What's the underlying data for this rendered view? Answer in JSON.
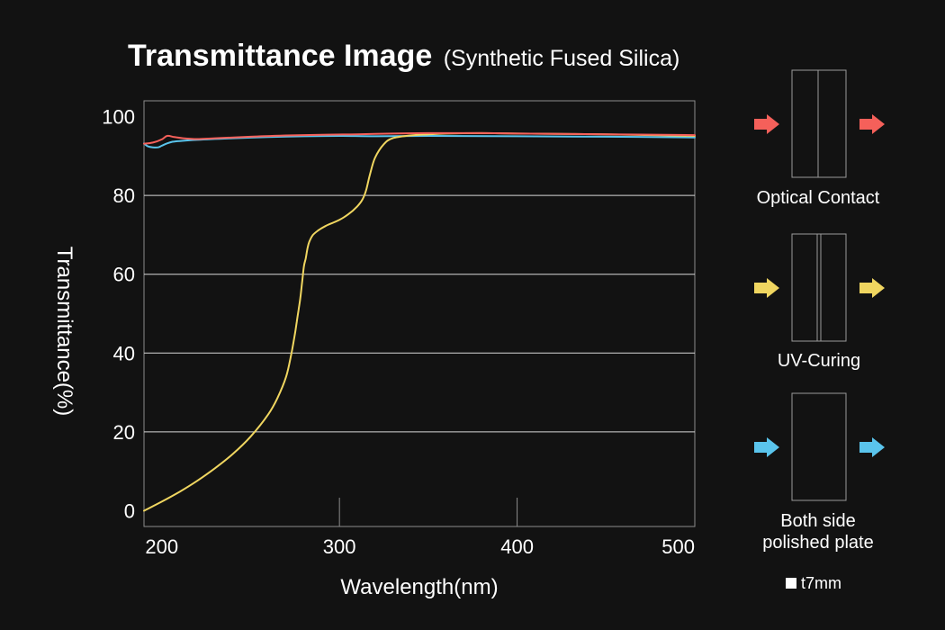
{
  "chart_data": {
    "type": "line",
    "title": "Transmittance Image",
    "subtitle": "(Synthetic Fused Silica)",
    "xlabel": "Wavelength(nm)",
    "ylabel": "Transmittance(%)",
    "xlim": [
      190,
      500
    ],
    "ylim": [
      -4,
      104
    ],
    "x_ticks": [
      {
        "value": 200,
        "label": "200"
      },
      {
        "value": 300,
        "label": "300"
      },
      {
        "value": 400,
        "label": "400"
      },
      {
        "value": 500,
        "label": "500"
      }
    ],
    "y_ticks": [
      {
        "value": 0,
        "label": "0"
      },
      {
        "value": 20,
        "label": "20"
      },
      {
        "value": 40,
        "label": "40"
      },
      {
        "value": 60,
        "label": "60"
      },
      {
        "value": 80,
        "label": "80"
      },
      {
        "value": 100,
        "label": "100"
      }
    ],
    "grid": {
      "horizontal": [
        20,
        40,
        60,
        80
      ],
      "vertical_stubs": [
        300,
        400
      ]
    },
    "series": [
      {
        "name": "Optical Contact",
        "color": "#f5605a",
        "x": [
          190,
          195,
          200,
          203,
          207,
          212,
          220,
          230,
          250,
          270,
          290,
          310,
          330,
          350,
          380,
          400,
          450,
          500
        ],
        "y": [
          93.1,
          93.4,
          94.2,
          95.1,
          94.8,
          94.5,
          94.3,
          94.5,
          94.9,
          95.2,
          95.4,
          95.5,
          95.7,
          95.8,
          95.8,
          95.7,
          95.5,
          95.3
        ]
      },
      {
        "name": "UV-Curing",
        "color": "#f0d660",
        "x": [
          190,
          200,
          210,
          220,
          230,
          240,
          250,
          260,
          265,
          270,
          273,
          275,
          276,
          277,
          278,
          279,
          280,
          281,
          282,
          283,
          285,
          288,
          292,
          296,
          300,
          305,
          310,
          313,
          315,
          317,
          320,
          325,
          330,
          340,
          350,
          360,
          380,
          400,
          450,
          500
        ],
        "y": [
          0,
          2.3,
          4.8,
          7.6,
          10.8,
          14.4,
          18.8,
          24.5,
          28.5,
          34,
          40,
          45,
          48,
          51,
          54,
          58,
          62,
          64,
          66.5,
          68.2,
          69.9,
          71.1,
          72.2,
          73,
          73.8,
          75.2,
          77.2,
          79,
          81.3,
          85,
          89.5,
          93,
          94.5,
          95.2,
          95.5,
          95.7,
          95.8,
          95.7,
          95.5,
          95.1
        ]
      },
      {
        "name": "Both side polished plate",
        "color": "#5ac4ec",
        "x": [
          190,
          192,
          195,
          198,
          200,
          203,
          206,
          210,
          220,
          240,
          260,
          280,
          300,
          320,
          350,
          400,
          450,
          500
        ],
        "y": [
          93.2,
          92.5,
          92.2,
          92.2,
          92.6,
          93.2,
          93.6,
          93.8,
          94.1,
          94.5,
          94.8,
          95,
          95.1,
          95,
          95.1,
          95,
          94.9,
          94.7
        ]
      }
    ]
  },
  "samples": [
    {
      "label_lines": [
        "Optical Contact"
      ],
      "color": "#f5605a",
      "type": "optical-contact"
    },
    {
      "label_lines": [
        "UV-Curing"
      ],
      "color": "#f0d660",
      "type": "uv-curing"
    },
    {
      "label_lines": [
        "Both side",
        "polished plate"
      ],
      "color": "#5ac4ec",
      "type": "polished-plate"
    }
  ],
  "note": "t7mm"
}
